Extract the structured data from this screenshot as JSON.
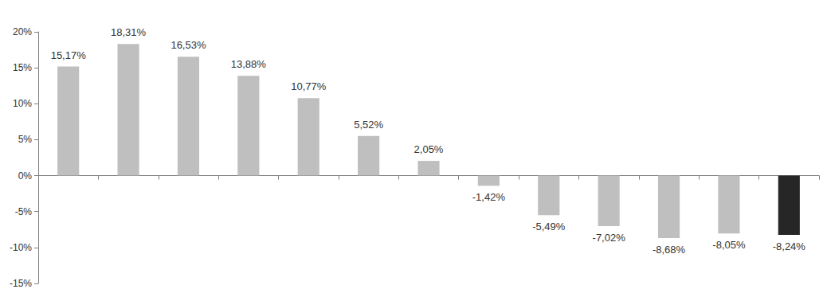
{
  "chart_data": {
    "type": "bar",
    "categories": [
      null,
      null,
      null,
      null,
      null,
      null,
      null,
      null,
      null,
      null,
      null,
      null,
      null
    ],
    "values": [
      15.17,
      18.31,
      16.53,
      13.88,
      10.77,
      5.52,
      2.05,
      -1.42,
      -5.49,
      -7.02,
      -8.68,
      -8.05,
      -8.24
    ],
    "value_labels": [
      "15,17%",
      "18,31%",
      "16,53%",
      "13,88%",
      "10,77%",
      "5,52%",
      "2,05%",
      "-1,42%",
      "-5,49%",
      "-7,02%",
      "-8,68%",
      "-8,05%",
      "-8,24%"
    ],
    "colors": [
      "#bfbfbf",
      "#bfbfbf",
      "#bfbfbf",
      "#bfbfbf",
      "#bfbfbf",
      "#bfbfbf",
      "#bfbfbf",
      "#bfbfbf",
      "#bfbfbf",
      "#bfbfbf",
      "#bfbfbf",
      "#bfbfbf",
      "#262626"
    ],
    "ylim": [
      -15,
      20
    ],
    "yticks": [
      {
        "value": -15,
        "label": "-15%"
      },
      {
        "value": -10,
        "label": "-10%"
      },
      {
        "value": -5,
        "label": "-5%"
      },
      {
        "value": 0,
        "label": "0%"
      },
      {
        "value": 5,
        "label": "5%"
      },
      {
        "value": 10,
        "label": "10%"
      },
      {
        "value": 15,
        "label": "15%"
      },
      {
        "value": 20,
        "label": "20%"
      }
    ],
    "grid": false,
    "data_labels": true
  }
}
